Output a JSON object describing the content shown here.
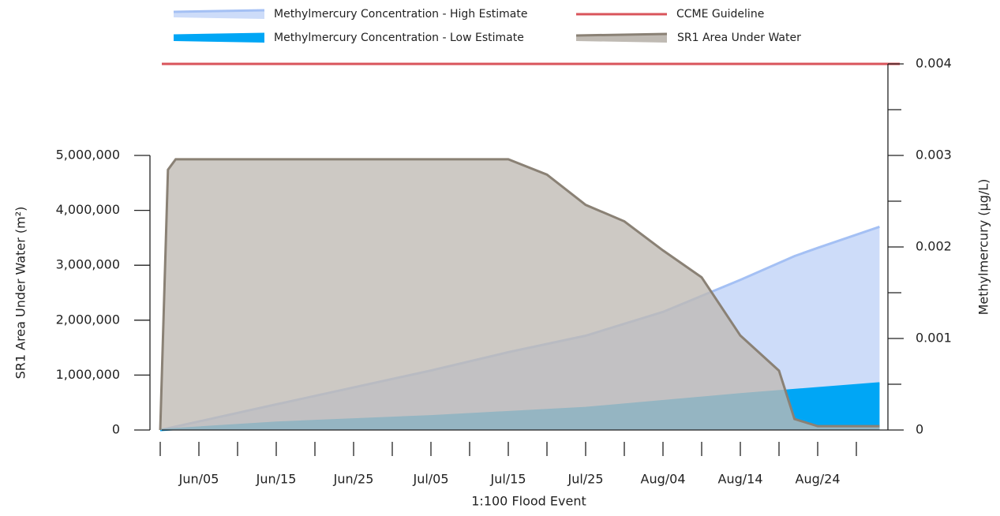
{
  "chart_data": {
    "type": "area",
    "x_label": "1:100 Flood Event",
    "y_label": "SR1 Area Under Water (m²)",
    "y2_label": "Methylmercury (µg/L)",
    "xlim": [
      "05-31",
      "09-03"
    ],
    "xticks": [
      {
        "value": "06-05",
        "label": "Jun/05"
      },
      {
        "value": "06-15",
        "label": "Jun/15"
      },
      {
        "value": "06-25",
        "label": "Jun/25"
      },
      {
        "value": "07-05",
        "label": "Jul/05"
      },
      {
        "value": "07-15",
        "label": "Jul/15"
      },
      {
        "value": "07-25",
        "label": "Jul/25"
      },
      {
        "value": "08-04",
        "label": "Aug/04"
      },
      {
        "value": "08-14",
        "label": "Aug/14"
      },
      {
        "value": "08-24",
        "label": "Aug/24"
      }
    ],
    "xminorticks": [
      "05-31",
      "06-10",
      "06-20",
      "06-30",
      "07-10",
      "07-20",
      "07-30",
      "08-09",
      "08-19",
      "08-29"
    ],
    "ylim": [
      0,
      5000000
    ],
    "yticks": [
      0,
      {
        "value": 1000000,
        "label": "1,000,000"
      },
      {
        "value": 2000000,
        "label": "2,000,000"
      },
      {
        "value": 3000000,
        "label": "3,000,000"
      },
      {
        "value": 4000000,
        "label": "4,000,000"
      },
      {
        "value": 5000000,
        "label": "5,000,000"
      }
    ],
    "y2lim": [
      0,
      0.004
    ],
    "y2ticks": [
      0,
      0.001,
      0.002,
      0.003,
      0.004
    ],
    "y2minorticks": [
      0.0005,
      0.0015,
      0.0025,
      0.0035
    ],
    "series": [
      {
        "name": "Methylmercury Concentration - High Estimate",
        "color": "#a4c0f4",
        "fill": "#cddcf9",
        "axis": "y2",
        "x": [
          "05-31",
          "06-15",
          "07-05",
          "07-15",
          "07-25",
          "08-04",
          "08-14",
          "08-21",
          "08-24",
          "09-01"
        ],
        "values": [
          0,
          0.00028,
          0.00065,
          0.00085,
          0.00103,
          0.00129,
          0.00164,
          0.0019,
          0.00199,
          0.00222
        ]
      },
      {
        "name": "Methylmercury Concentration - Low Estimate",
        "color": "#00a6f5",
        "fill": "#00a6f5",
        "axis": "y2",
        "x": [
          "05-31",
          "06-15",
          "07-05",
          "07-25",
          "08-14",
          "09-01"
        ],
        "values": [
          0,
          8e-05,
          0.00015,
          0.00024,
          0.00039,
          0.00051
        ]
      },
      {
        "name": "SR1 Area Under Water",
        "color": "#8a8175",
        "fill": "#bfbab3",
        "axis": "y",
        "x": [
          "05-31",
          "06-01",
          "06-02",
          "07-15",
          "07-20",
          "07-25",
          "07-30",
          "08-04",
          "08-09",
          "08-14",
          "08-19",
          "08-21",
          "08-24",
          "09-01"
        ],
        "values": [
          0,
          4740000,
          4930000,
          4930000,
          4650000,
          4100000,
          3800000,
          3270000,
          2780000,
          1720000,
          1080000,
          200000,
          70000,
          70000
        ]
      }
    ],
    "reference_lines": [
      {
        "name": "CCME Guideline",
        "color": "#d9545b",
        "value": 0.004,
        "axis": "y2"
      }
    ]
  }
}
